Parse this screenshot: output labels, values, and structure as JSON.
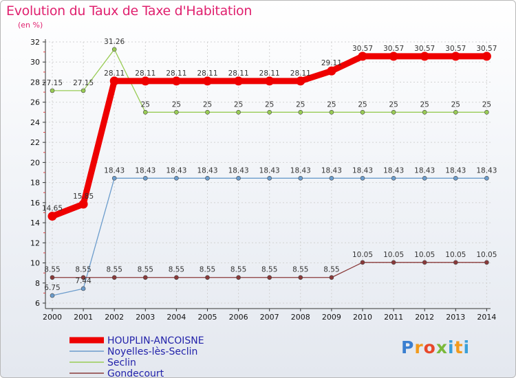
{
  "title": "Evolution du Taux de Taxe d'Habitation",
  "unit": "(en %)",
  "logo": {
    "letters": [
      "P",
      "r",
      "o",
      "x",
      "i",
      "t",
      "i"
    ],
    "colors": [
      "#3a7fd0",
      "#f29a1c",
      "#e8482a",
      "#7ab93a",
      "#3a9fd8",
      "#f29a1c",
      "#3a9fd8"
    ]
  },
  "chart_data": {
    "type": "line",
    "title": "Evolution du Taux de Taxe d'Habitation",
    "ylabel": "(en %)",
    "xlabel": "",
    "ylim": [
      6,
      32
    ],
    "yticks": [
      6,
      8,
      10,
      12,
      14,
      16,
      18,
      20,
      22,
      24,
      26,
      28,
      30,
      32
    ],
    "x": [
      "2000",
      "2001",
      "2002",
      "2003",
      "2004",
      "2005",
      "2006",
      "2007",
      "2008",
      "2009",
      "2010",
      "2011",
      "2012",
      "2013",
      "2014"
    ],
    "legend_position": "bottom-left",
    "series": [
      {
        "name": "HOUPLIN-ANCOISNE",
        "color": "#ee0000",
        "thick": true,
        "values": [
          14.65,
          15.85,
          28.11,
          28.11,
          28.11,
          28.11,
          28.11,
          28.11,
          28.11,
          29.11,
          30.57,
          30.57,
          30.57,
          30.57,
          30.57
        ],
        "labels": [
          "14.65",
          "15.85",
          "28.11",
          "28.11",
          "28.11",
          "28.11",
          "28.11",
          "28.11",
          "28.11",
          "29.11",
          "30.57",
          "30.57",
          "30.57",
          "30.57",
          "30.57"
        ]
      },
      {
        "name": "Noyelles-lès-Seclin",
        "color": "#6b9ccc",
        "thick": false,
        "values": [
          6.75,
          7.44,
          18.43,
          18.43,
          18.43,
          18.43,
          18.43,
          18.43,
          18.43,
          18.43,
          18.43,
          18.43,
          18.43,
          18.43,
          18.43
        ],
        "labels": [
          "6.75",
          "7.44",
          "18.43",
          "18.43",
          "18.43",
          "18.43",
          "18.43",
          "18.43",
          "18.43",
          "18.43",
          "18.43",
          "18.43",
          "18.43",
          "18.43",
          "18.43"
        ]
      },
      {
        "name": "Seclin",
        "color": "#99cc55",
        "thick": false,
        "values": [
          27.15,
          27.15,
          31.26,
          25,
          25,
          25,
          25,
          25,
          25,
          25,
          25,
          25,
          25,
          25,
          25
        ],
        "labels": [
          "27.15",
          "27.15",
          "31.26",
          "25",
          "25",
          "25",
          "25",
          "25",
          "25",
          "25",
          "25",
          "25",
          "25",
          "25",
          "25"
        ]
      },
      {
        "name": "Gondecourt",
        "color": "#8a3a3a",
        "thick": false,
        "values": [
          8.55,
          8.55,
          8.55,
          8.55,
          8.55,
          8.55,
          8.55,
          8.55,
          8.55,
          8.55,
          10.05,
          10.05,
          10.05,
          10.05,
          10.05
        ],
        "labels": [
          "8.55",
          "8.55",
          "8.55",
          "8.55",
          "8.55",
          "8.55",
          "8.55",
          "8.55",
          "8.55",
          "8.55",
          "10.05",
          "10.05",
          "10.05",
          "10.05",
          "10.05"
        ]
      }
    ]
  }
}
